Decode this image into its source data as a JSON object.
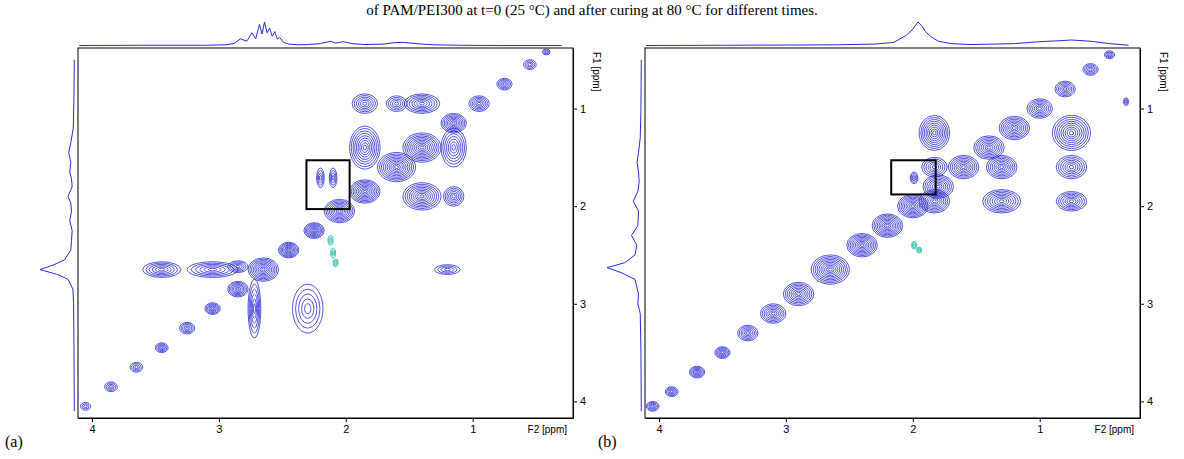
{
  "caption": "of PAM/PEI300 at t=0 (25 °C) and after curing at 80 °C for different times.",
  "chart_data": [
    {
      "type": "contour",
      "panel": "(a)",
      "x_label": "F2 [ppm]",
      "y_label": "F1 [ppm]",
      "xlim": [
        4.11,
        0.21
      ],
      "ylim": [
        0.38,
        4.17
      ],
      "xticks": [
        1,
        2,
        3,
        4
      ],
      "yticks": [
        1,
        2,
        3,
        4
      ],
      "color": "#2a2ad6",
      "series": [
        {
          "color": "#2a2ad6",
          "x": [
            4.05,
            3.85,
            3.65,
            3.45,
            3.25,
            3.05,
            2.85,
            2.65,
            2.45,
            2.25,
            2.05,
            1.85,
            1.6,
            1.4,
            1.15,
            0.95,
            0.75,
            0.55,
            0.42,
            1.85,
            1.4,
            1.85,
            1.4,
            1.15,
            1.15,
            1.6,
            2.2,
            2.1,
            3.45,
            3.05,
            2.85,
            2.72,
            2.3,
            1.2
          ],
          "y": [
            4.05,
            3.85,
            3.65,
            3.45,
            3.25,
            3.05,
            2.85,
            2.65,
            2.45,
            2.25,
            2.05,
            1.85,
            1.6,
            1.4,
            1.15,
            0.95,
            0.75,
            0.55,
            0.42,
            1.4,
            1.9,
            0.95,
            0.95,
            1.4,
            1.9,
            0.95,
            1.71,
            1.71,
            2.65,
            2.65,
            2.62,
            3.05,
            3.05,
            2.65
          ],
          "wx": [
            0.04,
            0.05,
            0.05,
            0.05,
            0.06,
            0.06,
            0.08,
            0.12,
            0.08,
            0.08,
            0.12,
            0.12,
            0.15,
            0.15,
            0.1,
            0.08,
            0.06,
            0.05,
            0.03,
            0.12,
            0.15,
            0.1,
            0.14,
            0.1,
            0.08,
            0.08,
            0.03,
            0.03,
            0.15,
            0.2,
            0.08,
            0.05,
            0.12,
            0.1
          ],
          "wy": [
            0.04,
            0.05,
            0.05,
            0.05,
            0.06,
            0.06,
            0.08,
            0.12,
            0.08,
            0.08,
            0.12,
            0.12,
            0.15,
            0.15,
            0.1,
            0.08,
            0.06,
            0.05,
            0.03,
            0.22,
            0.14,
            0.1,
            0.1,
            0.2,
            0.1,
            0.08,
            0.1,
            0.1,
            0.08,
            0.08,
            0.06,
            0.3,
            0.25,
            0.05
          ],
          "intensity": [
            3,
            4,
            4,
            5,
            5,
            6,
            7,
            9,
            8,
            8,
            9,
            9,
            10,
            10,
            8,
            6,
            5,
            4,
            3,
            9,
            9,
            6,
            7,
            7,
            6,
            5,
            4,
            4,
            6,
            6,
            5,
            6,
            5,
            4
          ]
        },
        {
          "color": "#18b8a0",
          "x": [
            2.12,
            2.1,
            2.08
          ],
          "y": [
            2.35,
            2.48,
            2.58
          ],
          "wx": [
            0.02,
            0.02,
            0.02
          ],
          "wy": [
            0.05,
            0.05,
            0.04
          ],
          "intensity": [
            3,
            3,
            3
          ]
        }
      ],
      "highlight": {
        "x": [
          2.31,
          1.97
        ],
        "y": [
          1.53,
          2.03
        ]
      },
      "projection_x": {
        "x": [
          4.1,
          3.6,
          3.1,
          2.95,
          2.88,
          2.83,
          2.78,
          2.74,
          2.71,
          2.68,
          2.66,
          2.64,
          2.62,
          2.6,
          2.58,
          2.56,
          2.54,
          2.52,
          2.49,
          2.45,
          2.38,
          2.3,
          2.2,
          2.12,
          2.08,
          2.02,
          1.95,
          1.85,
          1.7,
          1.62,
          1.55,
          1.48,
          1.4,
          1.3,
          1.1,
          0.8,
          0.3
        ],
        "values": [
          0.02,
          0.03,
          0.03,
          0.05,
          0.1,
          0.3,
          0.2,
          0.55,
          0.3,
          0.9,
          0.5,
          1.0,
          0.55,
          0.75,
          0.4,
          0.6,
          0.3,
          0.35,
          0.15,
          0.08,
          0.05,
          0.06,
          0.1,
          0.2,
          0.12,
          0.18,
          0.1,
          0.06,
          0.08,
          0.14,
          0.15,
          0.12,
          0.08,
          0.05,
          0.03,
          0.02,
          0.02
        ]
      },
      "projection_y": {
        "y": [
          0.5,
          0.9,
          1.2,
          1.35,
          1.45,
          1.55,
          1.65,
          1.72,
          1.8,
          1.9,
          1.97,
          2.05,
          2.15,
          2.25,
          2.35,
          2.45,
          2.55,
          2.6,
          2.65,
          2.7,
          2.75,
          2.85,
          3.0,
          3.4,
          4.1
        ],
        "values": [
          0.02,
          0.03,
          0.05,
          0.12,
          0.18,
          0.12,
          0.15,
          0.1,
          0.08,
          0.2,
          0.12,
          0.1,
          0.15,
          0.08,
          0.1,
          0.12,
          0.3,
          0.6,
          1.0,
          0.5,
          0.2,
          0.06,
          0.04,
          0.03,
          0.02
        ]
      }
    },
    {
      "type": "contour",
      "panel": "(b)",
      "x_label": "F2 [ppm]",
      "y_label": "F1 [ppm]",
      "xlim": [
        4.11,
        0.21
      ],
      "ylim": [
        0.38,
        4.17
      ],
      "xticks": [
        1,
        2,
        3,
        4
      ],
      "yticks": [
        1,
        2,
        3,
        4
      ],
      "color": "#2a2ad6",
      "series": [
        {
          "color": "#2a2ad6",
          "x": [
            4.05,
            3.9,
            3.7,
            3.5,
            3.3,
            3.1,
            2.9,
            2.65,
            2.4,
            2.2,
            2.0,
            1.8,
            1.6,
            1.4,
            1.2,
            1.0,
            0.8,
            0.6,
            0.45,
            1.83,
            0.75,
            1.83,
            1.3,
            0.75,
            1.3,
            0.75,
            1.83,
            1.99,
            0.32
          ],
          "y": [
            4.05,
            3.9,
            3.7,
            3.5,
            3.3,
            3.1,
            2.9,
            2.65,
            2.4,
            2.2,
            2.0,
            1.8,
            1.6,
            1.4,
            1.2,
            1.0,
            0.8,
            0.6,
            0.45,
            1.25,
            1.25,
            1.95,
            1.95,
            1.95,
            1.6,
            1.6,
            1.6,
            1.71,
            0.93
          ],
          "wx": [
            0.05,
            0.05,
            0.06,
            0.06,
            0.08,
            0.1,
            0.12,
            0.15,
            0.12,
            0.12,
            0.12,
            0.12,
            0.12,
            0.12,
            0.12,
            0.1,
            0.08,
            0.06,
            0.04,
            0.12,
            0.15,
            0.12,
            0.15,
            0.12,
            0.12,
            0.12,
            0.1,
            0.03,
            0.02
          ],
          "wy": [
            0.05,
            0.05,
            0.06,
            0.06,
            0.08,
            0.1,
            0.12,
            0.15,
            0.12,
            0.12,
            0.12,
            0.12,
            0.12,
            0.12,
            0.12,
            0.1,
            0.08,
            0.06,
            0.04,
            0.18,
            0.18,
            0.12,
            0.12,
            0.1,
            0.12,
            0.12,
            0.1,
            0.06,
            0.04
          ],
          "intensity": [
            5,
            5,
            6,
            6,
            6,
            7,
            8,
            10,
            9,
            9,
            9,
            8,
            8,
            8,
            8,
            7,
            6,
            5,
            4,
            9,
            9,
            8,
            8,
            7,
            8,
            7,
            6,
            4,
            3
          ]
        },
        {
          "color": "#18b8a0",
          "x": [
            1.99,
            1.95
          ],
          "y": [
            2.4,
            2.45
          ],
          "wx": [
            0.02,
            0.02
          ],
          "wy": [
            0.04,
            0.03
          ],
          "intensity": [
            3,
            3
          ]
        }
      ],
      "highlight": {
        "x": [
          2.17,
          1.82
        ],
        "y": [
          1.53,
          1.88
        ]
      },
      "projection_x": {
        "x": [
          4.1,
          3.5,
          3.0,
          2.6,
          2.3,
          2.15,
          2.05,
          2.0,
          1.96,
          1.93,
          1.9,
          1.86,
          1.8,
          1.7,
          1.55,
          1.35,
          1.2,
          1.0,
          0.85,
          0.75,
          0.6,
          0.45,
          0.3
        ],
        "values": [
          0.02,
          0.03,
          0.04,
          0.05,
          0.08,
          0.15,
          0.45,
          0.7,
          1.0,
          0.85,
          0.6,
          0.4,
          0.2,
          0.1,
          0.06,
          0.08,
          0.1,
          0.18,
          0.22,
          0.25,
          0.2,
          0.1,
          0.03
        ]
      },
      "projection_y": {
        "y": [
          0.5,
          1.0,
          1.3,
          1.45,
          1.55,
          1.65,
          1.75,
          1.85,
          1.95,
          2.05,
          2.2,
          2.3,
          2.4,
          2.5,
          2.58,
          2.63,
          2.68,
          2.75,
          2.9,
          3.0,
          3.1,
          3.5,
          4.1
        ],
        "values": [
          0.02,
          0.03,
          0.05,
          0.1,
          0.14,
          0.1,
          0.08,
          0.12,
          0.25,
          0.1,
          0.12,
          0.3,
          0.15,
          0.2,
          0.5,
          1.0,
          0.6,
          0.2,
          0.1,
          0.12,
          0.05,
          0.03,
          0.02
        ]
      }
    }
  ]
}
